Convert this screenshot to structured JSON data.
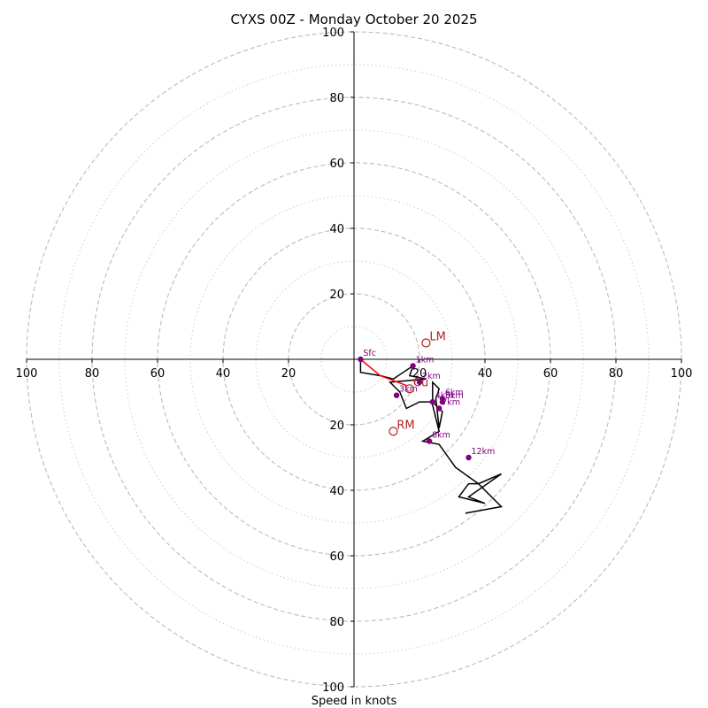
{
  "chart_data": {
    "type": "hodograph",
    "title": "CYXS 00Z - Monday October 20 2025",
    "xlabel": "Speed in knots",
    "max_speed": 100,
    "ring_major": [
      20,
      40,
      60,
      80,
      100
    ],
    "ring_minor": [
      10,
      30,
      50,
      70,
      90
    ],
    "axis_ticks": [
      "100",
      "80",
      "60",
      "40",
      "20",
      "20",
      "40",
      "60",
      "80",
      "100"
    ],
    "axis_tick_values": [
      -100,
      -80,
      -60,
      -40,
      -20,
      20,
      40,
      60,
      80,
      100
    ],
    "vertical_ticks": [
      "20",
      "40",
      "60",
      "80",
      "100"
    ],
    "vertical_tick_values": [
      20,
      40,
      60,
      80,
      100
    ],
    "colors": {
      "grid_major": "#bbbbbb",
      "grid_minor": "#cccccc",
      "trace": "#000000",
      "lowlevel": "#ff0000",
      "points": "#800080",
      "storm": "#b22222"
    },
    "trace_uv": [
      [
        2,
        0
      ],
      [
        2,
        -4
      ],
      [
        8,
        -5
      ],
      [
        12,
        -6
      ],
      [
        18,
        -2
      ],
      [
        17,
        -5
      ],
      [
        22,
        -6
      ],
      [
        11,
        -7
      ],
      [
        14,
        -10
      ],
      [
        16,
        -15
      ],
      [
        20,
        -13
      ],
      [
        24,
        -13
      ],
      [
        27,
        -16
      ],
      [
        26,
        -21
      ],
      [
        25,
        -12
      ],
      [
        26,
        -9
      ],
      [
        24,
        -7
      ],
      [
        24,
        -14
      ],
      [
        26,
        -22
      ],
      [
        21,
        -25
      ],
      [
        26,
        -26
      ],
      [
        31,
        -33
      ],
      [
        38,
        -38
      ],
      [
        45,
        -35
      ],
      [
        35,
        -42
      ],
      [
        40,
        -44
      ],
      [
        32,
        -42
      ],
      [
        35,
        -38
      ],
      [
        38,
        -38
      ],
      [
        45,
        -45
      ],
      [
        34,
        -47
      ]
    ],
    "lowlevel_uv": [
      [
        2,
        0
      ],
      [
        8,
        -5
      ],
      [
        16,
        -8
      ]
    ],
    "height_points": [
      {
        "label": "Sfc",
        "u": 2,
        "v": 0
      },
      {
        "label": "1km",
        "u": 18,
        "v": -2
      },
      {
        "label": "2km",
        "u": 20,
        "v": -7
      },
      {
        "label": "3km",
        "u": 13,
        "v": -11
      },
      {
        "label": "4km",
        "u": 24,
        "v": -13
      },
      {
        "label": "5km",
        "u": 27,
        "v": -13
      },
      {
        "label": "6km",
        "u": 27,
        "v": -12
      },
      {
        "label": "7km",
        "u": 26,
        "v": -15
      },
      {
        "label": "8km",
        "u": 23,
        "v": -25
      },
      {
        "label": "12km",
        "u": 35,
        "v": -30
      }
    ],
    "storm_motion": [
      {
        "label": "LM",
        "u": 22,
        "v": 5
      },
      {
        "label": "Cu",
        "u": 17,
        "v": -9
      },
      {
        "label": "RM",
        "u": 12,
        "v": -22
      }
    ]
  }
}
